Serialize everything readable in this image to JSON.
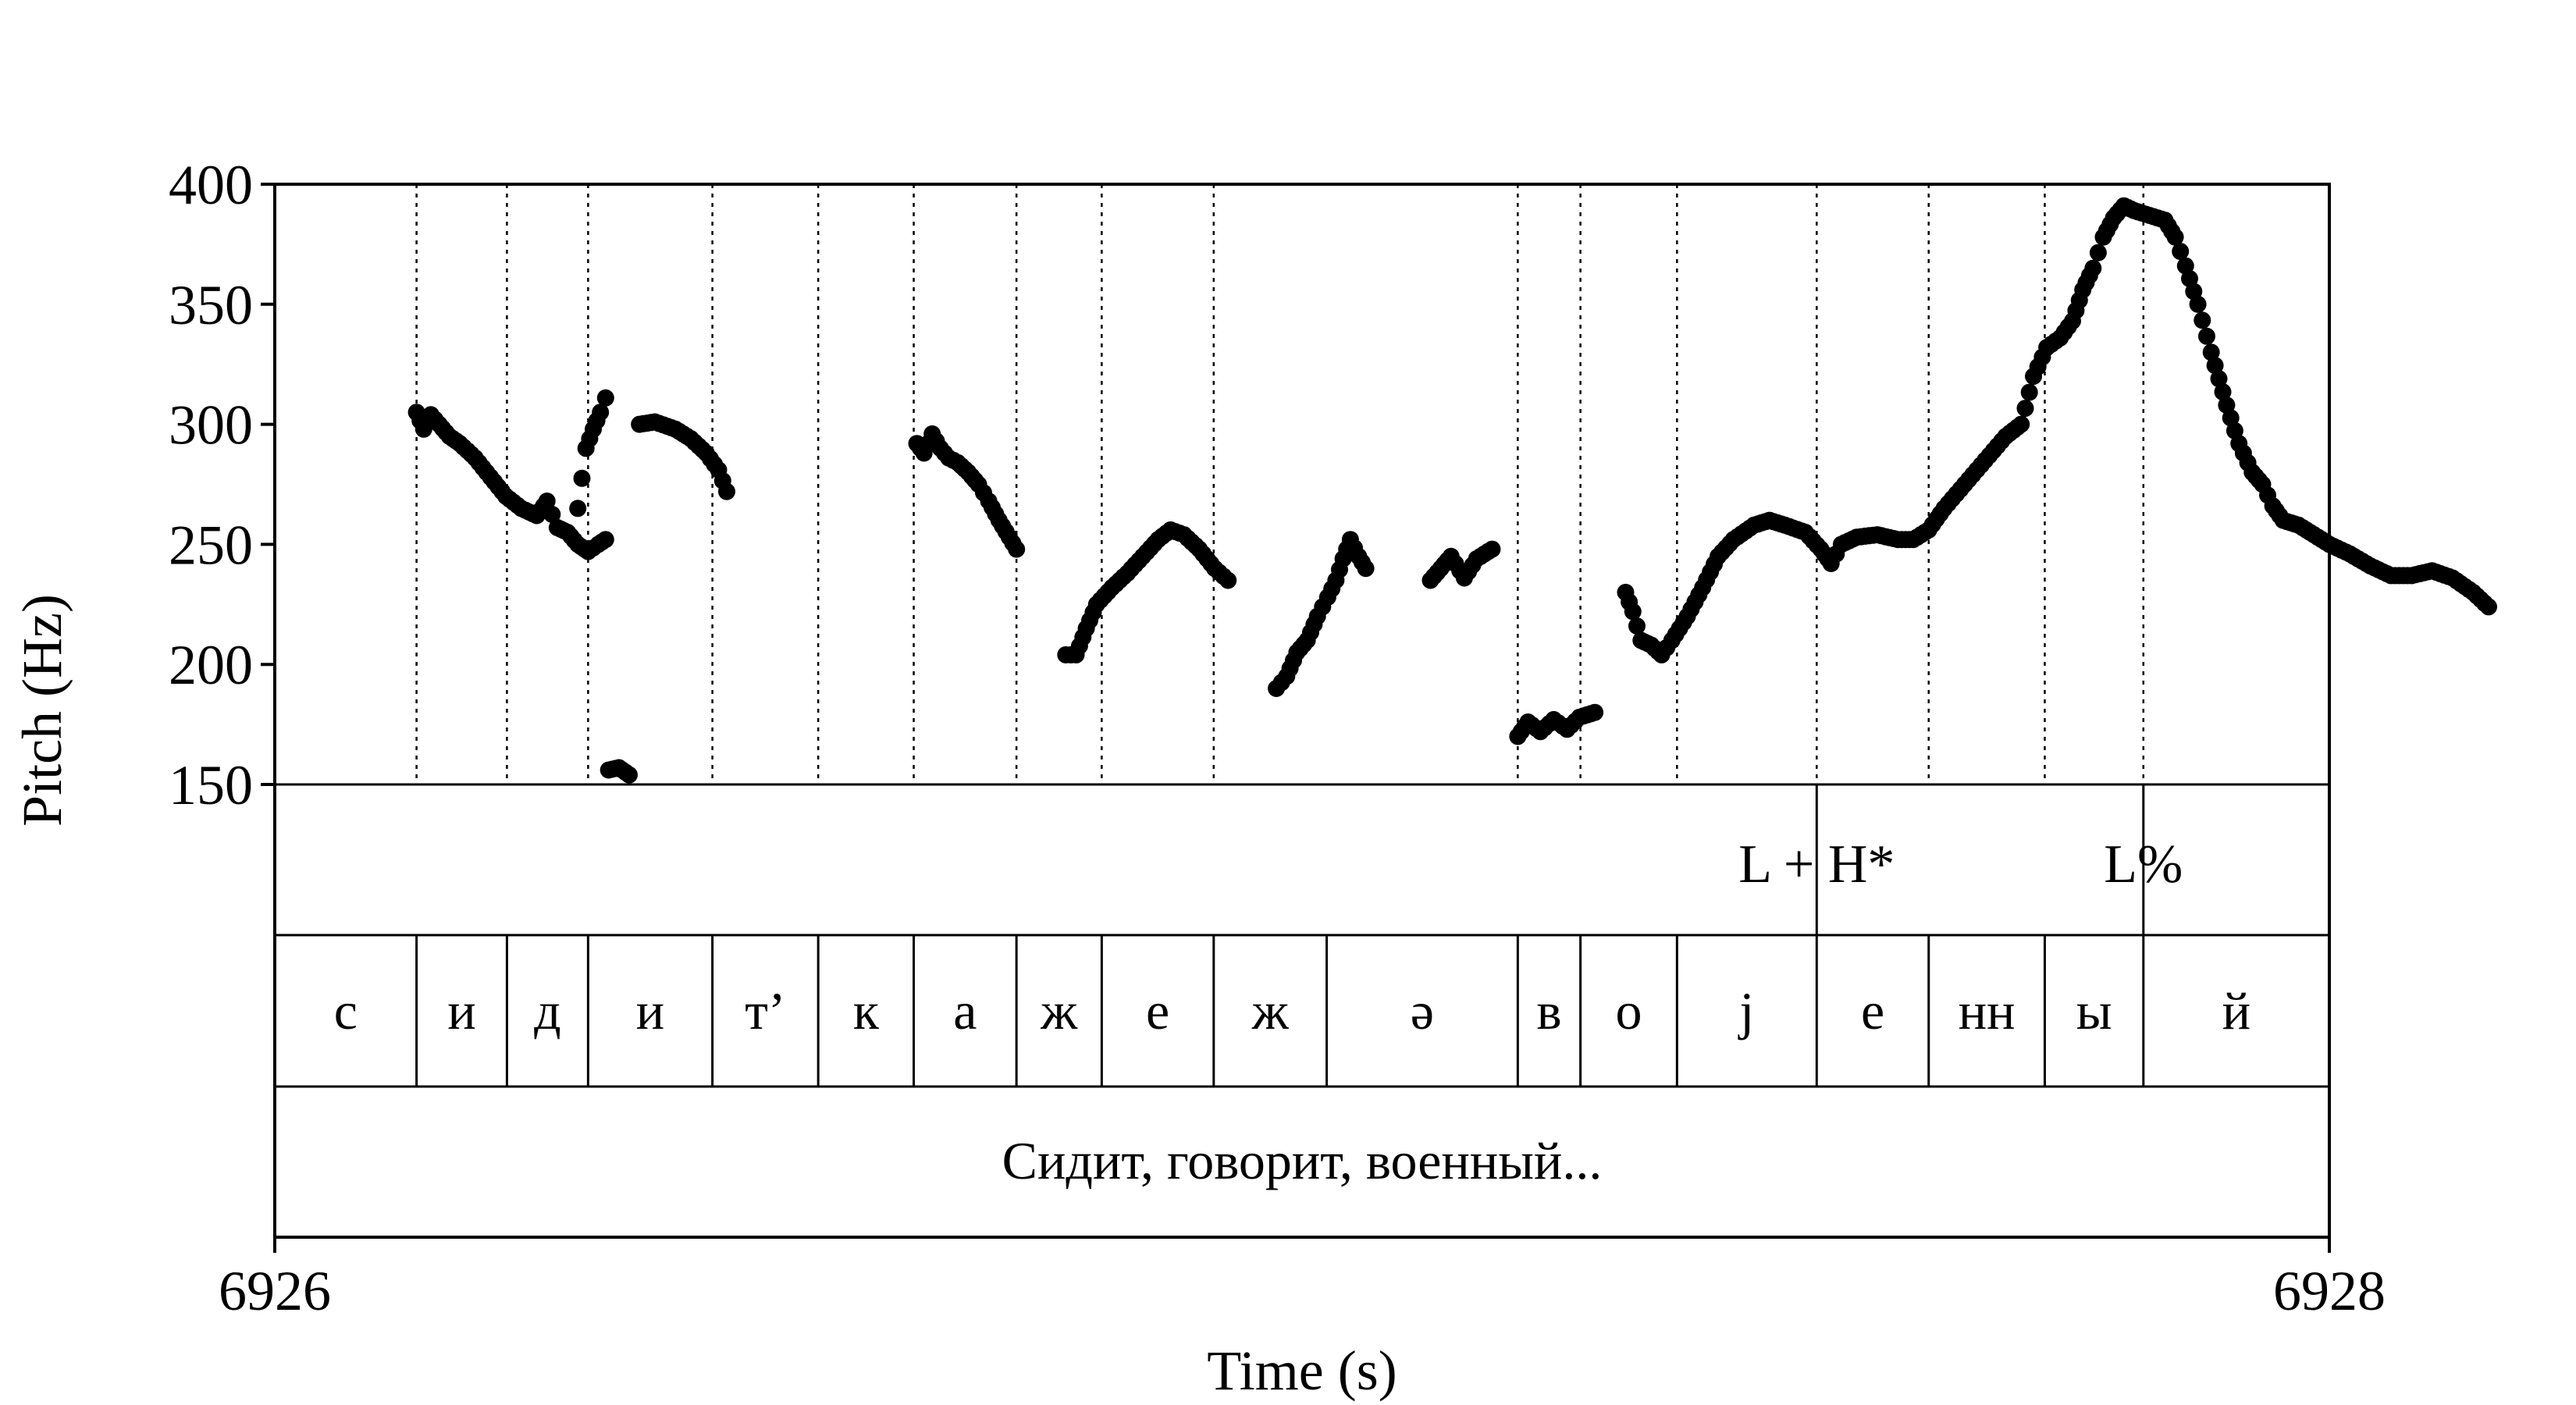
{
  "chart_data": {
    "type": "scatter",
    "title": "",
    "xlabel": "Time (s)",
    "ylabel": "Pitch (Hz)",
    "xlim": [
      6926,
      6928
    ],
    "ylim": [
      150,
      400
    ],
    "x_ticks": [
      "6926",
      "6928"
    ],
    "y_ticks": [
      "150",
      "200",
      "250",
      "300",
      "350",
      "400"
    ],
    "y_tick_values": [
      150,
      200,
      250,
      300,
      350,
      400
    ],
    "point_color": "#000000",
    "pitch_series": [
      [
        [
          6926.138,
          305
        ],
        [
          6926.145,
          298
        ],
        [
          6926.152,
          304
        ],
        [
          6926.16,
          300
        ],
        [
          6926.17,
          295
        ],
        [
          6926.18,
          292
        ],
        [
          6926.195,
          286
        ],
        [
          6926.21,
          278
        ],
        [
          6926.225,
          270
        ],
        [
          6926.24,
          265
        ],
        [
          6926.255,
          262
        ],
        [
          6926.265,
          268
        ],
        [
          6926.275,
          257
        ],
        [
          6926.285,
          255
        ],
        [
          6926.295,
          250
        ],
        [
          6926.305,
          247
        ],
        [
          6926.315,
          250
        ],
        [
          6926.322,
          252
        ]
      ],
      [
        [
          6926.295,
          265
        ],
        [
          6926.303,
          290
        ],
        [
          6926.31,
          298
        ],
        [
          6926.317,
          305
        ],
        [
          6926.322,
          311
        ]
      ],
      [
        [
          6926.325,
          156
        ],
        [
          6926.335,
          157
        ],
        [
          6926.345,
          154
        ]
      ],
      [
        [
          6926.355,
          300
        ],
        [
          6926.37,
          301
        ],
        [
          6926.39,
          298
        ],
        [
          6926.405,
          294
        ],
        [
          6926.42,
          288
        ],
        [
          6926.432,
          281
        ],
        [
          6926.44,
          272
        ]
      ],
      [
        [
          6926.625,
          292
        ],
        [
          6926.632,
          288
        ],
        [
          6926.64,
          296
        ],
        [
          6926.648,
          290
        ],
        [
          6926.656,
          286
        ],
        [
          6926.665,
          284
        ],
        [
          6926.675,
          280
        ],
        [
          6926.685,
          275
        ],
        [
          6926.695,
          268
        ],
        [
          6926.705,
          260
        ],
        [
          6926.715,
          253
        ],
        [
          6926.722,
          248
        ]
      ],
      [
        [
          6926.77,
          204
        ],
        [
          6926.78,
          204
        ],
        [
          6926.79,
          215
        ],
        [
          6926.8,
          225
        ],
        [
          6926.815,
          232
        ],
        [
          6926.83,
          238
        ],
        [
          6926.845,
          245
        ],
        [
          6926.86,
          252
        ],
        [
          6926.872,
          256
        ],
        [
          6926.885,
          254
        ],
        [
          6926.9,
          248
        ],
        [
          6926.915,
          240
        ],
        [
          6926.928,
          235
        ]
      ],
      [
        [
          6926.975,
          190
        ],
        [
          6926.985,
          195
        ],
        [
          6926.995,
          205
        ],
        [
          6927.005,
          210
        ],
        [
          6927.015,
          220
        ],
        [
          6927.025,
          228
        ],
        [
          6927.033,
          235
        ],
        [
          6927.04,
          244
        ],
        [
          6927.047,
          252
        ],
        [
          6927.055,
          245
        ],
        [
          6927.062,
          240
        ]
      ],
      [
        [
          6927.125,
          235
        ],
        [
          6927.135,
          240
        ],
        [
          6927.145,
          245
        ],
        [
          6927.158,
          236
        ],
        [
          6927.17,
          244
        ],
        [
          6927.185,
          248
        ]
      ],
      [
        [
          6927.21,
          170
        ],
        [
          6927.22,
          176
        ],
        [
          6927.232,
          172
        ],
        [
          6927.245,
          177
        ],
        [
          6927.258,
          173
        ],
        [
          6927.27,
          178
        ],
        [
          6927.285,
          180
        ]
      ],
      [
        [
          6927.315,
          230
        ],
        [
          6927.322,
          222
        ],
        [
          6927.33,
          210
        ],
        [
          6927.34,
          208
        ],
        [
          6927.35,
          204
        ],
        [
          6927.36,
          210
        ],
        [
          6927.375,
          220
        ],
        [
          6927.39,
          232
        ],
        [
          6927.405,
          245
        ],
        [
          6927.42,
          252
        ],
        [
          6927.44,
          258
        ],
        [
          6927.455,
          260
        ],
        [
          6927.47,
          258
        ],
        [
          6927.49,
          255
        ],
        [
          6927.505,
          248
        ],
        [
          6927.515,
          242
        ],
        [
          6927.525,
          250
        ],
        [
          6927.54,
          253
        ],
        [
          6927.56,
          254
        ],
        [
          6927.58,
          252
        ],
        [
          6927.595,
          252
        ],
        [
          6927.61,
          256
        ],
        [
          6927.625,
          265
        ],
        [
          6927.645,
          275
        ],
        [
          6927.665,
          285
        ],
        [
          6927.685,
          295
        ],
        [
          6927.7,
          300
        ],
        [
          6927.712,
          320
        ],
        [
          6927.725,
          332
        ],
        [
          6927.738,
          336
        ],
        [
          6927.75,
          343
        ],
        [
          6927.76,
          356
        ],
        [
          6927.77,
          365
        ],
        [
          6927.78,
          378
        ],
        [
          6927.79,
          386
        ],
        [
          6927.8,
          391
        ],
        [
          6927.81,
          389
        ],
        [
          6927.825,
          387
        ],
        [
          6927.84,
          385
        ],
        [
          6927.85,
          378
        ],
        [
          6927.86,
          366
        ],
        [
          6927.872,
          350
        ],
        [
          6927.885,
          330
        ],
        [
          6927.9,
          308
        ],
        [
          6927.912,
          292
        ],
        [
          6927.925,
          280
        ],
        [
          6927.935,
          275
        ],
        [
          6927.945,
          266
        ],
        [
          6927.955,
          260
        ],
        [
          6927.97,
          258
        ],
        [
          6927.985,
          254
        ],
        [
          6928.0,
          250
        ],
        [
          6928.02,
          246
        ],
        [
          6928.04,
          241
        ],
        [
          6928.06,
          237
        ],
        [
          6928.08,
          237
        ],
        [
          6928.1,
          239
        ],
        [
          6928.12,
          236
        ],
        [
          6928.14,
          230
        ],
        [
          6928.155,
          224
        ]
      ]
    ],
    "segment_boundaries": [
      6926.138,
      6926.226,
      6926.305,
      6926.426,
      6926.529,
      6926.622,
      6926.722,
      6926.805,
      6926.914,
      6927.21,
      6927.271,
      6927.365,
      6927.501,
      6927.61,
      6927.723,
      6927.819
    ],
    "segments": [
      {
        "label": "с",
        "start": 6926.0,
        "end": 6926.138
      },
      {
        "label": "и",
        "start": 6926.138,
        "end": 6926.226
      },
      {
        "label": "д",
        "start": 6926.226,
        "end": 6926.305
      },
      {
        "label": "и",
        "start": 6926.305,
        "end": 6926.426
      },
      {
        "label": "т’",
        "start": 6926.426,
        "end": 6926.529
      },
      {
        "label": "к",
        "start": 6926.529,
        "end": 6926.622
      },
      {
        "label": "а",
        "start": 6926.622,
        "end": 6926.722
      },
      {
        "label": "ж",
        "start": 6926.722,
        "end": 6926.805
      },
      {
        "label": "е",
        "start": 6926.805,
        "end": 6926.914
      },
      {
        "label": "ж",
        "start": 6926.914,
        "end": 6927.024
      },
      {
        "label": "ə",
        "start": 6927.024,
        "end": 6927.21
      },
      {
        "label": "в",
        "start": 6927.21,
        "end": 6927.271
      },
      {
        "label": "о",
        "start": 6927.271,
        "end": 6927.365
      },
      {
        "label": "j",
        "start": 6927.365,
        "end": 6927.501
      },
      {
        "label": "е",
        "start": 6927.501,
        "end": 6927.61
      },
      {
        "label": "нн",
        "start": 6927.61,
        "end": 6927.723
      },
      {
        "label": "ы",
        "start": 6927.723,
        "end": 6927.819
      },
      {
        "label": "й",
        "start": 6927.819,
        "end": 6928.0
      }
    ],
    "tones": [
      {
        "label": "L + H*",
        "time": 6927.501
      },
      {
        "label": "L%",
        "time": 6927.819
      }
    ],
    "sentence": {
      "label": "Сидит, говорит, военный...",
      "start": 6926.0,
      "end": 6928.0
    }
  }
}
